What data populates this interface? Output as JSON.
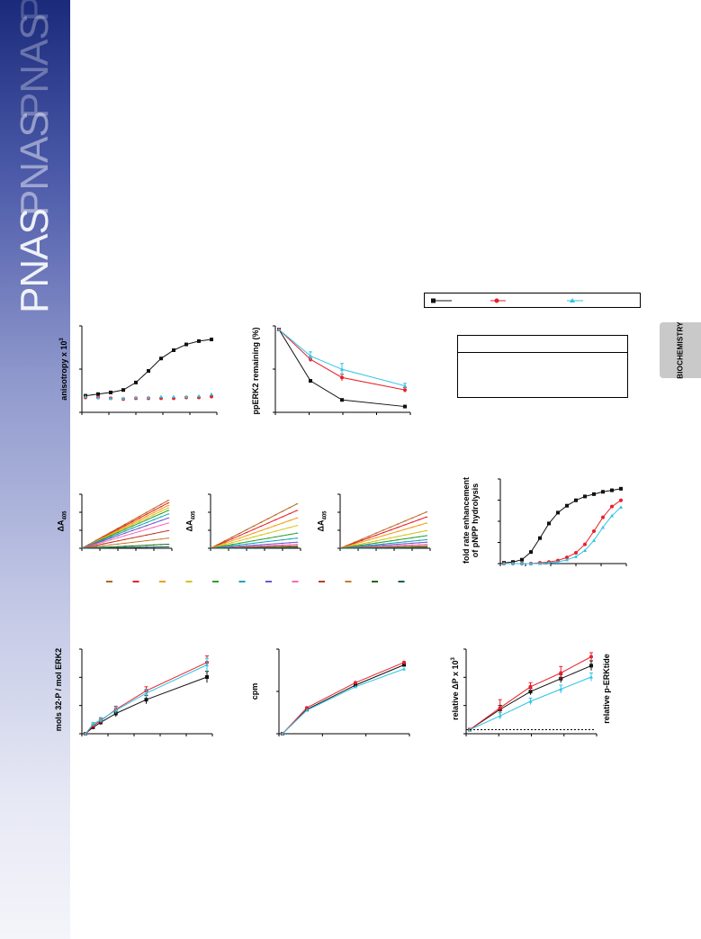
{
  "journal": {
    "logo_text": "PNAS",
    "section_tab": "BIOCHEMISTRY"
  },
  "colors": {
    "black": "#111111",
    "red": "#e8202a",
    "cyan": "#2ec4e6",
    "spectrum": [
      "#b5651d",
      "#e8202a",
      "#f39c12",
      "#d4c215",
      "#2ca02c",
      "#17a2b8",
      "#6a5acd",
      "#ff69b4",
      "#c0392b",
      "#c97b2c",
      "#1a6b1a",
      "#145a5a"
    ]
  },
  "panels": {
    "a": {
      "ylabel": "anisotropy x 10",
      "ylabel_sup": "3"
    },
    "b": {
      "ylabel": "ppERK2 remaining  (%)"
    },
    "d1": {
      "ylabel": "ΔA",
      "ylabel_sub": "405"
    },
    "d2": {
      "ylabel": "ΔA",
      "ylabel_sub": "405"
    },
    "d3": {
      "ylabel": "ΔA",
      "ylabel_sub": "405"
    },
    "e": {
      "ylabel_line1": "fold rate enhancement",
      "ylabel_line2": "of pNPP hydrolysis"
    },
    "f": {
      "ylabel": "mols 32-P / mol ERK2"
    },
    "g": {
      "ylabel": "cpm"
    },
    "h": {
      "ylabel": "relative ΔP x 10",
      "ylabel_sup": "3",
      "ylabel_right": "relative p-ERKtide"
    }
  },
  "chart_data": [
    {
      "id": "a",
      "type": "scatter",
      "title": "",
      "xlabel": "",
      "ylabel": "anisotropy x 10^3",
      "series": [
        {
          "color": "#111111",
          "marker": "square",
          "x": [
            1,
            2,
            3,
            4,
            5,
            6,
            7,
            8,
            9,
            10,
            11
          ],
          "values": [
            0.2,
            0.22,
            0.24,
            0.27,
            0.36,
            0.5,
            0.65,
            0.75,
            0.82,
            0.86,
            0.88
          ],
          "fit": true
        },
        {
          "color": "#e8202a",
          "marker": "circle",
          "x": [
            1,
            2,
            3,
            4,
            5,
            6,
            7,
            8,
            9,
            10,
            11
          ],
          "values": [
            0.18,
            0.18,
            0.17,
            0.16,
            0.17,
            0.17,
            0.17,
            0.17,
            0.18,
            0.18,
            0.19
          ]
        },
        {
          "color": "#2ec4e6",
          "marker": "triangle",
          "x": [
            1,
            2,
            3,
            4,
            5,
            6,
            7,
            8,
            9,
            10,
            11
          ],
          "values": [
            0.19,
            0.18,
            0.17,
            0.17,
            0.18,
            0.18,
            0.19,
            0.19,
            0.19,
            0.2,
            0.22
          ]
        }
      ]
    },
    {
      "id": "b",
      "type": "line",
      "title": "",
      "xlabel": "",
      "ylabel": "ppERK2 remaining (%)",
      "ylim": [
        0,
        100
      ],
      "x": [
        0,
        1,
        2,
        4
      ],
      "series": [
        {
          "color": "#111111",
          "values": [
            100,
            38,
            15,
            7
          ]
        },
        {
          "color": "#e8202a",
          "values": [
            100,
            64,
            42,
            27
          ],
          "err": [
            0,
            3,
            4,
            3
          ]
        },
        {
          "color": "#2ec4e6",
          "values": [
            100,
            68,
            52,
            32
          ],
          "err": [
            0,
            5,
            7,
            3
          ]
        }
      ]
    },
    {
      "id": "d1",
      "type": "line",
      "ylabel": "ΔA405",
      "slopes": [
        0.95,
        0.9,
        0.85,
        0.8,
        0.75,
        0.68,
        0.6,
        0.5,
        0.35,
        0.2,
        0.08,
        0.03
      ]
    },
    {
      "id": "d2",
      "type": "line",
      "ylabel": "ΔA405",
      "slopes": [
        0.88,
        0.75,
        0.6,
        0.45,
        0.3,
        0.2,
        0.12,
        0.08,
        0.05,
        0.03,
        0.02,
        0.01
      ]
    },
    {
      "id": "d3",
      "type": "line",
      "ylabel": "ΔA405",
      "slopes": [
        0.72,
        0.62,
        0.5,
        0.35,
        0.25,
        0.17,
        0.12,
        0.08,
        0.05,
        0.04,
        0.02,
        0.01
      ]
    },
    {
      "id": "e",
      "type": "scatter",
      "ylabel": "fold rate enhancement of pNPP hydrolysis",
      "x": [
        1,
        2,
        3,
        4,
        5,
        6,
        7,
        8,
        9,
        10,
        11,
        12,
        13,
        14
      ],
      "series": [
        {
          "color": "#111111",
          "values": [
            0.01,
            0.02,
            0.05,
            0.15,
            0.33,
            0.52,
            0.66,
            0.75,
            0.82,
            0.87,
            0.9,
            0.93,
            0.95,
            0.97
          ]
        },
        {
          "color": "#e8202a",
          "values": [
            0.0,
            0.0,
            0.0,
            0.0,
            0.01,
            0.02,
            0.04,
            0.08,
            0.14,
            0.25,
            0.42,
            0.6,
            0.74,
            0.82
          ]
        },
        {
          "color": "#2ec4e6",
          "values": [
            0.0,
            0.0,
            0.0,
            0.0,
            0.0,
            0.01,
            0.02,
            0.05,
            0.09,
            0.17,
            0.3,
            0.47,
            0.62,
            0.73
          ]
        }
      ]
    },
    {
      "id": "f",
      "type": "line",
      "ylabel": "mols 32-P / mol ERK2",
      "x": [
        0,
        0.5,
        1,
        2,
        4,
        8
      ],
      "series": [
        {
          "color": "#111111",
          "values": [
            0,
            0.08,
            0.14,
            0.25,
            0.42,
            0.7
          ],
          "err": [
            0,
            0.02,
            0.03,
            0.04,
            0.05,
            0.07
          ]
        },
        {
          "color": "#e8202a",
          "values": [
            0,
            0.1,
            0.16,
            0.3,
            0.53,
            0.88
          ],
          "err": [
            0,
            0.02,
            0.03,
            0.04,
            0.05,
            0.08
          ]
        },
        {
          "color": "#2ec4e6",
          "values": [
            0,
            0.12,
            0.17,
            0.29,
            0.5,
            0.85
          ],
          "err": [
            0,
            0.02,
            0.03,
            0.04,
            0.05,
            0.08
          ]
        }
      ]
    },
    {
      "id": "g",
      "type": "line",
      "ylabel": "cpm",
      "x": [
        0,
        1,
        3,
        5
      ],
      "series": [
        {
          "color": "#111111",
          "values": [
            0,
            0.3,
            0.6,
            0.85
          ]
        },
        {
          "color": "#e8202a",
          "values": [
            0,
            0.32,
            0.63,
            0.88
          ]
        },
        {
          "color": "#2ec4e6",
          "values": [
            0,
            0.29,
            0.58,
            0.8
          ]
        }
      ]
    },
    {
      "id": "h",
      "type": "line",
      "ylabel": "relative ΔP x 10^3",
      "ylabel_right": "relative p-ERKtide",
      "x": [
        0,
        1,
        2,
        3,
        4
      ],
      "series": [
        {
          "color": "#111111",
          "values": [
            0.05,
            0.3,
            0.52,
            0.68,
            0.84
          ],
          "err": [
            0,
            0.05,
            0.04,
            0.05,
            0.06
          ]
        },
        {
          "color": "#e8202a",
          "values": [
            0.05,
            0.32,
            0.58,
            0.75,
            0.95
          ],
          "err": [
            0,
            0.1,
            0.05,
            0.08,
            0.05
          ]
        },
        {
          "color": "#2ec4e6",
          "values": [
            0.05,
            0.22,
            0.4,
            0.55,
            0.7
          ],
          "err": [
            0,
            0.04,
            0.04,
            0.05,
            0.05
          ]
        }
      ]
    }
  ]
}
